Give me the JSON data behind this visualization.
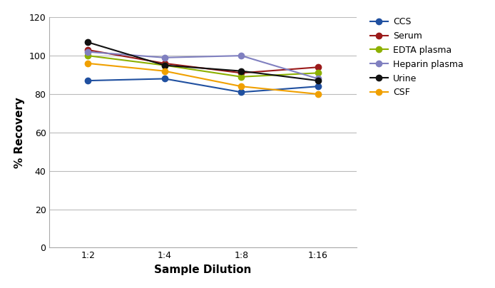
{
  "xlabel": "Sample Dilution",
  "ylabel": "% Recovery",
  "x_labels": [
    "1:2",
    "1:4",
    "1:8",
    "1:16"
  ],
  "x_positions": [
    0,
    1,
    2,
    3
  ],
  "ylim": [
    0,
    120
  ],
  "yticks": [
    0,
    20,
    40,
    60,
    80,
    100,
    120
  ],
  "series": [
    {
      "label": "CCS",
      "color": "#2050a0",
      "values": [
        87,
        88,
        81,
        84
      ],
      "marker": "o"
    },
    {
      "label": "Serum",
      "color": "#9b1a1a",
      "values": [
        103,
        96,
        91,
        94
      ],
      "marker": "o"
    },
    {
      "label": "EDTA plasma",
      "color": "#8db000",
      "values": [
        100,
        95,
        89,
        91
      ],
      "marker": "o"
    },
    {
      "label": "Heparin plasma",
      "color": "#8080c0",
      "values": [
        102,
        99,
        100,
        88
      ],
      "marker": "o"
    },
    {
      "label": "Urine",
      "color": "#111111",
      "values": [
        107,
        95,
        92,
        87
      ],
      "marker": "o"
    },
    {
      "label": "CSF",
      "color": "#f0a000",
      "values": [
        96,
        92,
        84,
        80
      ],
      "marker": "o"
    }
  ],
  "background_color": "#ffffff",
  "grid_color": "#bbbbbb",
  "legend_fontsize": 9,
  "axis_label_fontsize": 11,
  "tick_fontsize": 9,
  "line_width": 1.5,
  "marker_size": 6
}
